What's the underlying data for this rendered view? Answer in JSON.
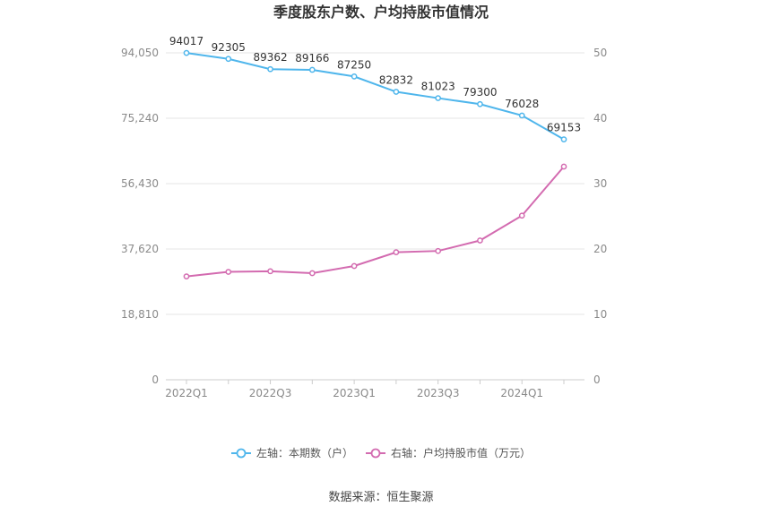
{
  "title": "季度股东户数、户均持股市值情况",
  "source": "数据来源：恒生聚源",
  "chart_data": {
    "type": "line",
    "x": [
      "2022Q1",
      "2022Q2",
      "2022Q3",
      "2022Q4",
      "2023Q1",
      "2023Q2",
      "2023Q3",
      "2023Q4",
      "2024Q1",
      "2024Q2"
    ],
    "x_tick_labels": [
      "2022Q1",
      "2022Q3",
      "2023Q1",
      "2023Q3",
      "2024Q1"
    ],
    "left_axis": {
      "ticks": [
        "0",
        "18,810",
        "37,620",
        "56,430",
        "75,240",
        "94,050"
      ],
      "min": 0,
      "max": 94050
    },
    "right_axis": {
      "ticks": [
        "0",
        "10",
        "20",
        "30",
        "40",
        "50"
      ],
      "min": 0,
      "max": 50
    },
    "grid": true,
    "legend_position": "bottom",
    "series": [
      {
        "name": "左轴：本期数（户）",
        "axis": "left",
        "color": "#4fb6ec",
        "values": [
          94017,
          92305,
          89362,
          89166,
          87250,
          82832,
          81023,
          79300,
          76028,
          69153
        ],
        "labels": [
          "94017",
          "92305",
          "89362",
          "89166",
          "87250",
          "82832",
          "81023",
          "79300",
          "76028",
          "69153"
        ]
      },
      {
        "name": "右轴：户均持股市值（万元）",
        "axis": "right",
        "color": "#d36bb0",
        "values": [
          15.8,
          16.5,
          16.6,
          16.3,
          17.4,
          19.5,
          19.7,
          21.3,
          25.1,
          32.6
        ]
      }
    ]
  }
}
